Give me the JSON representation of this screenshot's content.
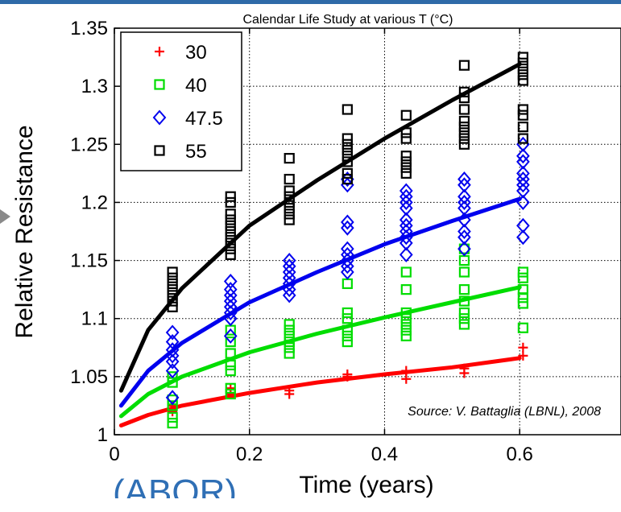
{
  "page": {
    "cut_text": "(ABOR)"
  },
  "chart_data": {
    "type": "scatter",
    "title": "Calendar Life Study at various T (°C)",
    "xlabel": "Time (years)",
    "ylabel": "Relative Resistance",
    "xlim": [
      0,
      0.75
    ],
    "ylim": [
      1,
      1.35
    ],
    "x_ticks": [
      0,
      0.2,
      0.4,
      0.6
    ],
    "x_tick_labels": [
      "0",
      "0.2",
      "0.4",
      "0.6"
    ],
    "y_ticks": [
      1,
      1.05,
      1.1,
      1.15,
      1.2,
      1.25,
      1.3,
      1.35
    ],
    "y_tick_labels": [
      "1",
      "1.05",
      "1.1",
      "1.15",
      "1.2",
      "1.25",
      "1.3",
      "1.35"
    ],
    "grid": true,
    "legend_position": "top-left",
    "annotation": "Source: V. Battaglia (LBNL), 2008",
    "series": [
      {
        "name": "30",
        "color": "#ff0000",
        "marker": "plus",
        "points": [
          [
            0.086,
            1.02
          ],
          [
            0.086,
            1.025
          ],
          [
            0.172,
            1.035
          ],
          [
            0.172,
            1.04
          ],
          [
            0.259,
            1.035
          ],
          [
            0.259,
            1.038
          ],
          [
            0.345,
            1.05
          ],
          [
            0.345,
            1.052
          ],
          [
            0.432,
            1.048
          ],
          [
            0.432,
            1.055
          ],
          [
            0.518,
            1.053
          ],
          [
            0.518,
            1.057
          ],
          [
            0.605,
            1.068
          ],
          [
            0.605,
            1.075
          ]
        ],
        "fit": [
          [
            0.01,
            1.008
          ],
          [
            0.05,
            1.017
          ],
          [
            0.1,
            1.025
          ],
          [
            0.2,
            1.036
          ],
          [
            0.3,
            1.045
          ],
          [
            0.4,
            1.052
          ],
          [
            0.5,
            1.058
          ],
          [
            0.6,
            1.066
          ]
        ]
      },
      {
        "name": "40",
        "color": "#00dd00",
        "marker": "square",
        "points": [
          [
            0.086,
            1.01
          ],
          [
            0.086,
            1.015
          ],
          [
            0.086,
            1.025
          ],
          [
            0.086,
            1.03
          ],
          [
            0.086,
            1.045
          ],
          [
            0.086,
            1.05
          ],
          [
            0.172,
            1.035
          ],
          [
            0.172,
            1.04
          ],
          [
            0.172,
            1.055
          ],
          [
            0.172,
            1.06
          ],
          [
            0.172,
            1.07
          ],
          [
            0.172,
            1.08
          ],
          [
            0.172,
            1.09
          ],
          [
            0.259,
            1.07
          ],
          [
            0.259,
            1.075
          ],
          [
            0.259,
            1.08
          ],
          [
            0.259,
            1.085
          ],
          [
            0.259,
            1.09
          ],
          [
            0.259,
            1.095
          ],
          [
            0.345,
            1.08
          ],
          [
            0.345,
            1.085
          ],
          [
            0.345,
            1.09
          ],
          [
            0.345,
            1.1
          ],
          [
            0.345,
            1.105
          ],
          [
            0.345,
            1.13
          ],
          [
            0.432,
            1.085
          ],
          [
            0.432,
            1.09
          ],
          [
            0.432,
            1.095
          ],
          [
            0.432,
            1.1
          ],
          [
            0.432,
            1.105
          ],
          [
            0.432,
            1.125
          ],
          [
            0.432,
            1.14
          ],
          [
            0.518,
            1.095
          ],
          [
            0.518,
            1.1
          ],
          [
            0.518,
            1.105
          ],
          [
            0.518,
            1.115
          ],
          [
            0.518,
            1.125
          ],
          [
            0.518,
            1.14
          ],
          [
            0.518,
            1.15
          ],
          [
            0.518,
            1.16
          ],
          [
            0.605,
            1.092
          ],
          [
            0.605,
            1.113
          ],
          [
            0.605,
            1.118
          ],
          [
            0.605,
            1.125
          ],
          [
            0.605,
            1.135
          ],
          [
            0.605,
            1.14
          ]
        ],
        "fit": [
          [
            0.01,
            1.016
          ],
          [
            0.05,
            1.035
          ],
          [
            0.1,
            1.05
          ],
          [
            0.2,
            1.071
          ],
          [
            0.3,
            1.087
          ],
          [
            0.4,
            1.101
          ],
          [
            0.5,
            1.114
          ],
          [
            0.6,
            1.127
          ]
        ]
      },
      {
        "name": "47.5",
        "color": "#0000ee",
        "marker": "diamond",
        "points": [
          [
            0.086,
            1.032
          ],
          [
            0.086,
            1.055
          ],
          [
            0.086,
            1.063
          ],
          [
            0.086,
            1.068
          ],
          [
            0.086,
            1.073
          ],
          [
            0.086,
            1.08
          ],
          [
            0.086,
            1.088
          ],
          [
            0.172,
            1.085
          ],
          [
            0.172,
            1.1
          ],
          [
            0.172,
            1.105
          ],
          [
            0.172,
            1.11
          ],
          [
            0.172,
            1.115
          ],
          [
            0.172,
            1.12
          ],
          [
            0.172,
            1.125
          ],
          [
            0.172,
            1.132
          ],
          [
            0.259,
            1.12
          ],
          [
            0.259,
            1.125
          ],
          [
            0.259,
            1.13
          ],
          [
            0.259,
            1.135
          ],
          [
            0.259,
            1.14
          ],
          [
            0.259,
            1.145
          ],
          [
            0.259,
            1.15
          ],
          [
            0.345,
            1.14
          ],
          [
            0.345,
            1.145
          ],
          [
            0.345,
            1.15
          ],
          [
            0.345,
            1.155
          ],
          [
            0.345,
            1.16
          ],
          [
            0.345,
            1.178
          ],
          [
            0.345,
            1.183
          ],
          [
            0.345,
            1.215
          ],
          [
            0.345,
            1.22
          ],
          [
            0.432,
            1.155
          ],
          [
            0.432,
            1.165
          ],
          [
            0.432,
            1.17
          ],
          [
            0.432,
            1.175
          ],
          [
            0.432,
            1.18
          ],
          [
            0.432,
            1.185
          ],
          [
            0.432,
            1.195
          ],
          [
            0.432,
            1.2
          ],
          [
            0.432,
            1.205
          ],
          [
            0.432,
            1.21
          ],
          [
            0.518,
            1.16
          ],
          [
            0.518,
            1.17
          ],
          [
            0.518,
            1.175
          ],
          [
            0.518,
            1.185
          ],
          [
            0.518,
            1.195
          ],
          [
            0.518,
            1.2
          ],
          [
            0.518,
            1.205
          ],
          [
            0.518,
            1.215
          ],
          [
            0.518,
            1.22
          ],
          [
            0.605,
            1.17
          ],
          [
            0.605,
            1.18
          ],
          [
            0.605,
            1.2
          ],
          [
            0.605,
            1.21
          ],
          [
            0.605,
            1.215
          ],
          [
            0.605,
            1.22
          ],
          [
            0.605,
            1.225
          ],
          [
            0.605,
            1.235
          ],
          [
            0.605,
            1.24
          ],
          [
            0.605,
            1.25
          ]
        ],
        "fit": [
          [
            0.01,
            1.025
          ],
          [
            0.05,
            1.055
          ],
          [
            0.1,
            1.079
          ],
          [
            0.2,
            1.114
          ],
          [
            0.3,
            1.14
          ],
          [
            0.4,
            1.164
          ],
          [
            0.5,
            1.184
          ],
          [
            0.6,
            1.203
          ]
        ]
      },
      {
        "name": "55",
        "color": "#000000",
        "marker": "square",
        "points": [
          [
            0.086,
            1.11
          ],
          [
            0.086,
            1.115
          ],
          [
            0.086,
            1.12
          ],
          [
            0.086,
            1.125
          ],
          [
            0.086,
            1.13
          ],
          [
            0.086,
            1.135
          ],
          [
            0.086,
            1.14
          ],
          [
            0.172,
            1.155
          ],
          [
            0.172,
            1.16
          ],
          [
            0.172,
            1.165
          ],
          [
            0.172,
            1.17
          ],
          [
            0.172,
            1.175
          ],
          [
            0.172,
            1.18
          ],
          [
            0.172,
            1.185
          ],
          [
            0.172,
            1.19
          ],
          [
            0.172,
            1.2
          ],
          [
            0.172,
            1.205
          ],
          [
            0.259,
            1.185
          ],
          [
            0.259,
            1.19
          ],
          [
            0.259,
            1.195
          ],
          [
            0.259,
            1.2
          ],
          [
            0.259,
            1.205
          ],
          [
            0.259,
            1.21
          ],
          [
            0.259,
            1.22
          ],
          [
            0.259,
            1.238
          ],
          [
            0.345,
            1.22
          ],
          [
            0.345,
            1.225
          ],
          [
            0.345,
            1.235
          ],
          [
            0.345,
            1.24
          ],
          [
            0.345,
            1.245
          ],
          [
            0.345,
            1.25
          ],
          [
            0.345,
            1.255
          ],
          [
            0.345,
            1.28
          ],
          [
            0.432,
            1.225
          ],
          [
            0.432,
            1.23
          ],
          [
            0.432,
            1.235
          ],
          [
            0.432,
            1.24
          ],
          [
            0.432,
            1.255
          ],
          [
            0.432,
            1.26
          ],
          [
            0.432,
            1.275
          ],
          [
            0.518,
            1.25
          ],
          [
            0.518,
            1.255
          ],
          [
            0.518,
            1.26
          ],
          [
            0.518,
            1.265
          ],
          [
            0.518,
            1.27
          ],
          [
            0.518,
            1.28
          ],
          [
            0.518,
            1.29
          ],
          [
            0.518,
            1.295
          ],
          [
            0.518,
            1.318
          ],
          [
            0.605,
            1.255
          ],
          [
            0.605,
            1.265
          ],
          [
            0.605,
            1.275
          ],
          [
            0.605,
            1.28
          ],
          [
            0.605,
            1.305
          ],
          [
            0.605,
            1.31
          ],
          [
            0.605,
            1.315
          ],
          [
            0.605,
            1.32
          ],
          [
            0.605,
            1.325
          ]
        ],
        "fit": [
          [
            0.01,
            1.038
          ],
          [
            0.05,
            1.09
          ],
          [
            0.1,
            1.126
          ],
          [
            0.2,
            1.18
          ],
          [
            0.3,
            1.219
          ],
          [
            0.4,
            1.255
          ],
          [
            0.5,
            1.288
          ],
          [
            0.6,
            1.319
          ]
        ]
      }
    ]
  }
}
